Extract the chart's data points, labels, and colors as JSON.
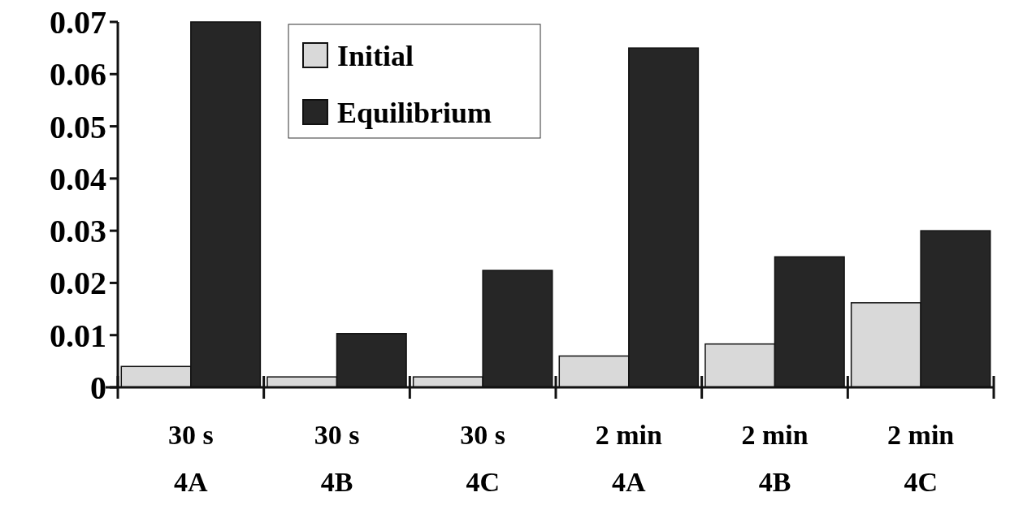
{
  "chart_data": {
    "type": "bar",
    "categories": [
      "30 s\n4A",
      "30 s\n4B",
      "30 s\n4C",
      "2 min\n4A",
      "2 min\n4B",
      "2 min\n4C"
    ],
    "series": [
      {
        "name": "Initial",
        "color": "#d9d9d9",
        "values": [
          0.004,
          0.002,
          0.002,
          0.006,
          0.0083,
          0.0162
        ]
      },
      {
        "name": "Equilibrium",
        "color": "#262626",
        "values": [
          0.07,
          0.0103,
          0.0224,
          0.065,
          0.025,
          0.03
        ]
      }
    ],
    "ylim": [
      0,
      0.07
    ],
    "yticks": [
      "0",
      0.01,
      0.02,
      0.03,
      0.04,
      0.05,
      0.06,
      0.07
    ],
    "legend": "top",
    "grid": false
  }
}
